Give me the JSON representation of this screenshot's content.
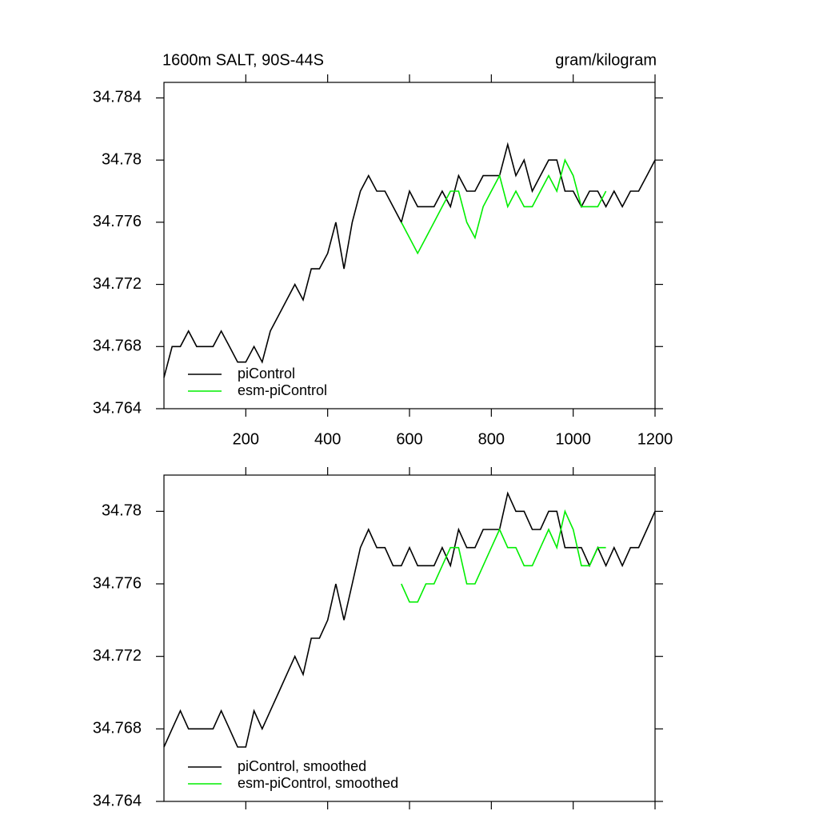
{
  "chart_data": [
    {
      "type": "line",
      "title": "1600m SALT, 90S-44S",
      "units": "gram/kilogram",
      "xlim": [
        0,
        1200
      ],
      "xticks": [
        200,
        400,
        600,
        800,
        1000,
        1200
      ],
      "xtick_labels_shown": true,
      "ylim": [
        34.764,
        34.785
      ],
      "yticks": [
        34.764,
        34.768,
        34.772,
        34.776,
        34.78,
        34.784
      ],
      "legend": "lower left",
      "series": [
        {
          "name": "piControl",
          "color": "#000000",
          "x": [
            0,
            20,
            40,
            60,
            80,
            100,
            120,
            140,
            160,
            180,
            200,
            220,
            240,
            260,
            280,
            300,
            320,
            340,
            360,
            380,
            400,
            420,
            440,
            460,
            480,
            500,
            520,
            540,
            560,
            580,
            600,
            620,
            640,
            660,
            680,
            700,
            720,
            740,
            760,
            780,
            800,
            820,
            840,
            860,
            880,
            900,
            920,
            940,
            960,
            980,
            1000,
            1020,
            1040,
            1060,
            1080,
            1100,
            1120,
            1140,
            1160,
            1180,
            1200
          ],
          "values": [
            34.766,
            34.768,
            34.768,
            34.769,
            34.768,
            34.768,
            34.768,
            34.769,
            34.768,
            34.767,
            34.767,
            34.768,
            34.767,
            34.769,
            34.77,
            34.771,
            34.772,
            34.771,
            34.773,
            34.773,
            34.774,
            34.776,
            34.773,
            34.776,
            34.778,
            34.779,
            34.778,
            34.778,
            34.777,
            34.776,
            34.778,
            34.777,
            34.777,
            34.777,
            34.778,
            34.777,
            34.779,
            34.778,
            34.778,
            34.779,
            34.779,
            34.779,
            34.781,
            34.779,
            34.78,
            34.778,
            34.779,
            34.78,
            34.78,
            34.778,
            34.778,
            34.777,
            34.778,
            34.778,
            34.777,
            34.778,
            34.777,
            34.778,
            34.778,
            34.779,
            34.78
          ]
        },
        {
          "name": "esm-piControl",
          "color": "#00ee00",
          "x": [
            580,
            600,
            620,
            640,
            660,
            680,
            700,
            720,
            740,
            760,
            780,
            800,
            820,
            840,
            860,
            880,
            900,
            920,
            940,
            960,
            980,
            1000,
            1020,
            1040,
            1060,
            1080
          ],
          "values": [
            34.776,
            34.775,
            34.774,
            34.775,
            34.776,
            34.777,
            34.778,
            34.778,
            34.776,
            34.775,
            34.777,
            34.778,
            34.779,
            34.777,
            34.778,
            34.777,
            34.777,
            34.778,
            34.779,
            34.778,
            34.78,
            34.779,
            34.777,
            34.777,
            34.777,
            34.778
          ]
        }
      ]
    },
    {
      "type": "line",
      "xlim": [
        0,
        1200
      ],
      "xticks": [
        200,
        400,
        600,
        800,
        1000,
        1200
      ],
      "xtick_labels_shown": false,
      "ylim": [
        34.764,
        34.782
      ],
      "yticks": [
        34.764,
        34.768,
        34.772,
        34.776,
        34.78
      ],
      "legend": "lower left",
      "series": [
        {
          "name": "piControl, smoothed",
          "color": "#000000",
          "x": [
            0,
            20,
            40,
            60,
            80,
            100,
            120,
            140,
            160,
            180,
            200,
            220,
            240,
            260,
            280,
            300,
            320,
            340,
            360,
            380,
            400,
            420,
            440,
            460,
            480,
            500,
            520,
            540,
            560,
            580,
            600,
            620,
            640,
            660,
            680,
            700,
            720,
            740,
            760,
            780,
            800,
            820,
            840,
            860,
            880,
            900,
            920,
            940,
            960,
            980,
            1000,
            1020,
            1040,
            1060,
            1080,
            1100,
            1120,
            1140,
            1160,
            1180,
            1200
          ],
          "values": [
            34.767,
            34.768,
            34.769,
            34.768,
            34.768,
            34.768,
            34.768,
            34.769,
            34.768,
            34.767,
            34.767,
            34.769,
            34.768,
            34.769,
            34.77,
            34.771,
            34.772,
            34.771,
            34.773,
            34.773,
            34.774,
            34.776,
            34.774,
            34.776,
            34.778,
            34.779,
            34.778,
            34.778,
            34.777,
            34.777,
            34.778,
            34.777,
            34.777,
            34.777,
            34.778,
            34.777,
            34.779,
            34.778,
            34.778,
            34.779,
            34.779,
            34.779,
            34.781,
            34.78,
            34.78,
            34.779,
            34.779,
            34.78,
            34.78,
            34.778,
            34.778,
            34.778,
            34.777,
            34.778,
            34.777,
            34.778,
            34.777,
            34.778,
            34.778,
            34.779,
            34.78
          ]
        },
        {
          "name": "esm-piControl, smoothed",
          "color": "#00ee00",
          "x": [
            580,
            600,
            620,
            640,
            660,
            680,
            700,
            720,
            740,
            760,
            780,
            800,
            820,
            840,
            860,
            880,
            900,
            920,
            940,
            960,
            980,
            1000,
            1020,
            1040,
            1060,
            1080
          ],
          "values": [
            34.776,
            34.775,
            34.775,
            34.776,
            34.776,
            34.777,
            34.778,
            34.778,
            34.776,
            34.776,
            34.777,
            34.778,
            34.779,
            34.778,
            34.778,
            34.777,
            34.777,
            34.778,
            34.779,
            34.778,
            34.78,
            34.779,
            34.777,
            34.777,
            34.778,
            34.778
          ]
        }
      ]
    }
  ]
}
